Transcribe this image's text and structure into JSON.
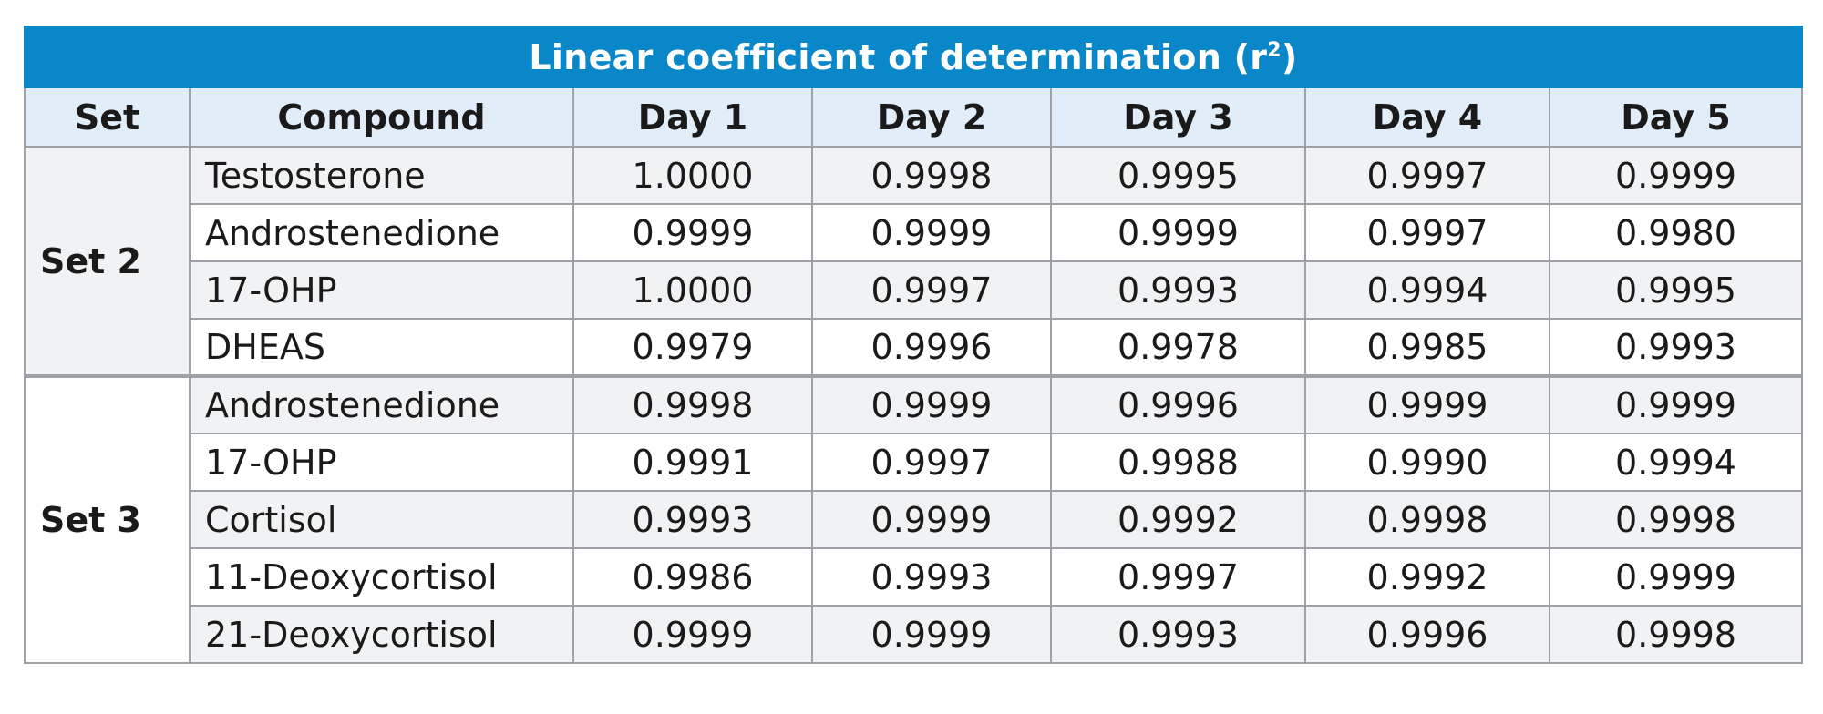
{
  "table": {
    "title_main": "Linear coefficient of determination (r",
    "title_sup": "2",
    "title_end": ")",
    "headers": [
      "Set",
      "Compound",
      "Day 1",
      "Day 2",
      "Day 3",
      "Day 4",
      "Day 5"
    ],
    "groups": [
      {
        "set": "Set 2",
        "rows": [
          {
            "compound": "Testosterone",
            "values": [
              "1.0000",
              "0.9998",
              "0.9995",
              "0.9997",
              "0.9999"
            ]
          },
          {
            "compound": "Androstenedione",
            "values": [
              "0.9999",
              "0.9999",
              "0.9999",
              "0.9997",
              "0.9980"
            ]
          },
          {
            "compound": "17-OHP",
            "values": [
              "1.0000",
              "0.9997",
              "0.9993",
              "0.9994",
              "0.9995"
            ]
          },
          {
            "compound": "DHEAS",
            "values": [
              "0.9979",
              "0.9996",
              "0.9978",
              "0.9985",
              "0.9993"
            ]
          }
        ]
      },
      {
        "set": "Set 3",
        "rows": [
          {
            "compound": "Androstenedione",
            "values": [
              "0.9998",
              "0.9999",
              "0.9996",
              "0.9999",
              "0.9999"
            ]
          },
          {
            "compound": "17-OHP",
            "values": [
              "0.9991",
              "0.9997",
              "0.9988",
              "0.9990",
              "0.9994"
            ]
          },
          {
            "compound": "Cortisol",
            "values": [
              "0.9993",
              "0.9999",
              "0.9992",
              "0.9998",
              "0.9998"
            ]
          },
          {
            "compound": "11-Deoxycortisol",
            "values": [
              "0.9986",
              "0.9993",
              "0.9997",
              "0.9992",
              "0.9999"
            ]
          },
          {
            "compound": "21-Deoxycortisol",
            "values": [
              "0.9999",
              "0.9999",
              "0.9993",
              "0.9996",
              "0.9998"
            ]
          }
        ]
      }
    ],
    "colors": {
      "title_bg": "#0a87c9",
      "header_bg": "#e1edf8",
      "shade_bg": "#f1f2f4",
      "border": "#9ea1a6"
    }
  }
}
